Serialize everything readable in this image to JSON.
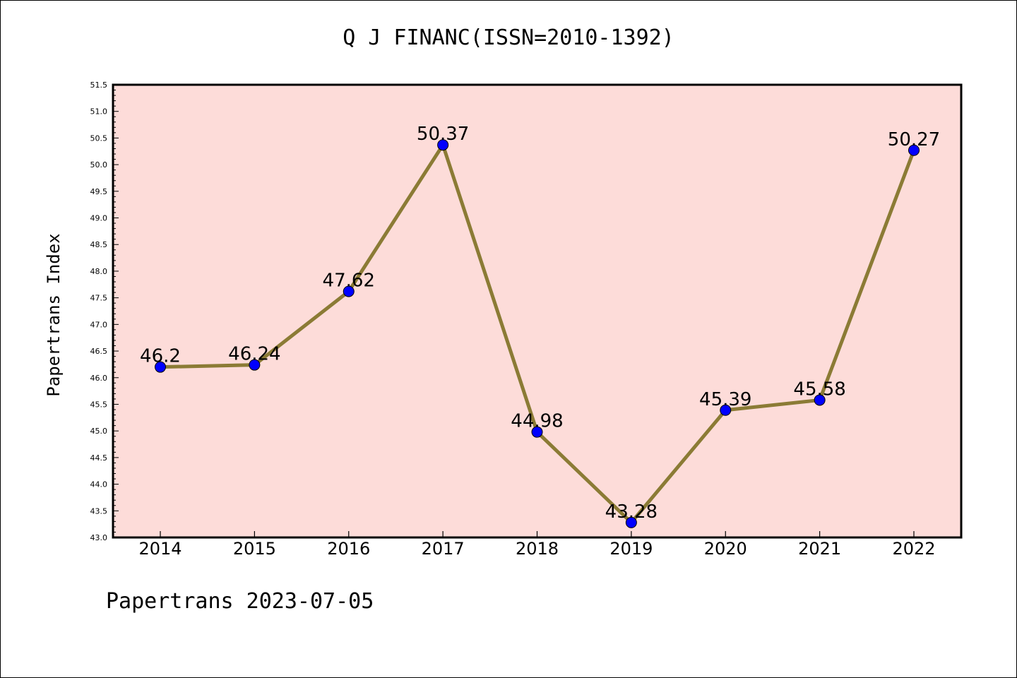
{
  "title": "Q J FINANC(ISSN=2010-1392)",
  "footer": "Papertrans 2023-07-05",
  "colors": {
    "plot_background": "#fddcd9",
    "line": "#8b7b35",
    "marker": "#0000ff",
    "axis": "#000000"
  },
  "chart_data": {
    "type": "line",
    "title": "Q J FINANC(ISSN=2010-1392)",
    "xlabel": "",
    "ylabel": "Papertrans Index",
    "categories": [
      "2014",
      "2015",
      "2016",
      "2017",
      "2018",
      "2019",
      "2020",
      "2021",
      "2022"
    ],
    "series": [
      {
        "values": [
          46.2,
          46.24,
          47.62,
          50.37,
          44.98,
          43.28,
          45.39,
          45.58,
          50.27
        ],
        "labels": [
          "46.2",
          "46.24",
          "47.62",
          "50.37",
          "44.98",
          "43.28",
          "45.39",
          "45.58",
          "50.27"
        ]
      }
    ],
    "ylim": [
      43.0,
      51.5
    ],
    "yticks": [
      "43.0",
      "43.5",
      "44.0",
      "44.5",
      "45.0",
      "45.5",
      "46.0",
      "46.5",
      "47.0",
      "47.5",
      "48.0",
      "48.5",
      "49.0",
      "49.5",
      "50.0",
      "50.5",
      "51.0",
      "51.5"
    ],
    "grid": false,
    "legend": "none",
    "marker": "circle"
  }
}
